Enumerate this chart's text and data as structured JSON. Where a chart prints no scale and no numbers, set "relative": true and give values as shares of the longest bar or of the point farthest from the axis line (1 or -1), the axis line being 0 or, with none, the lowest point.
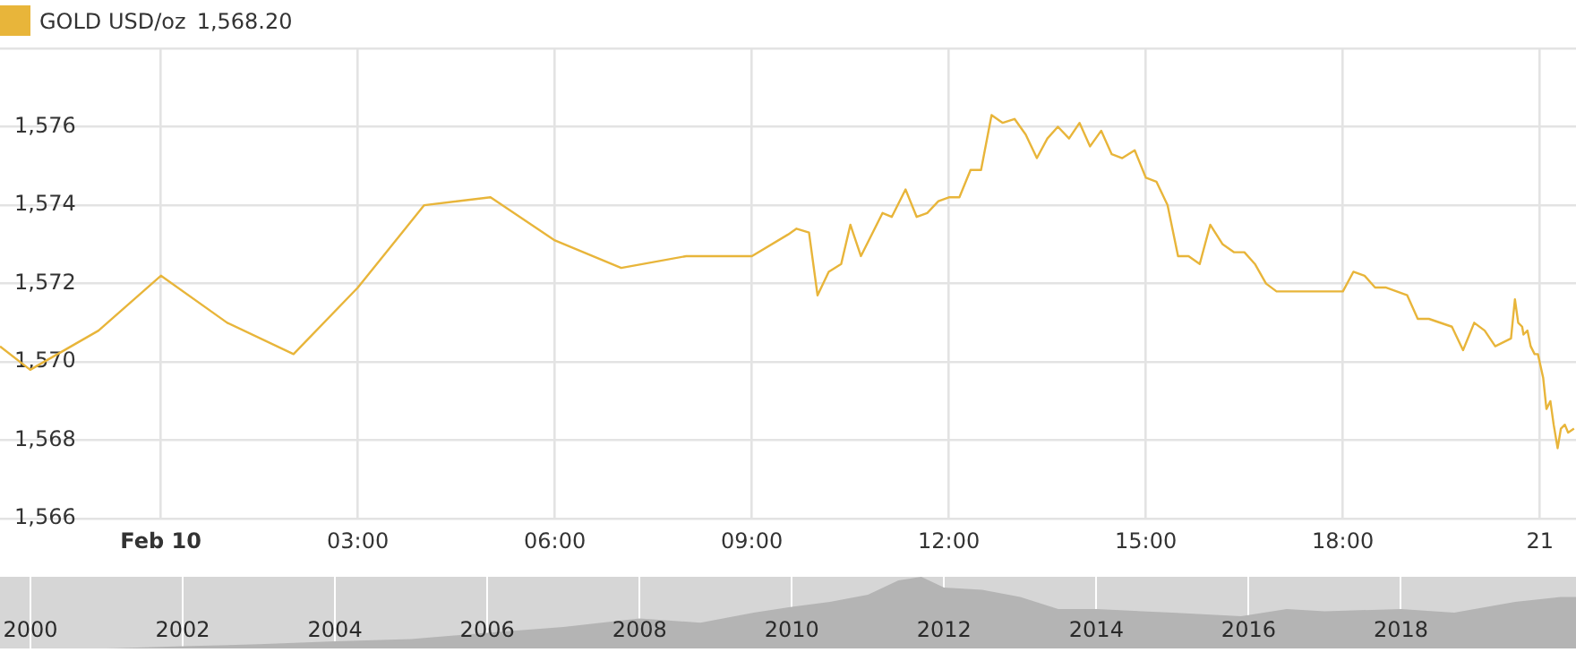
{
  "chart_data": [
    {
      "type": "line",
      "legend": "top left",
      "grid": true,
      "marker": "none",
      "annotations": [
        "1,568.20"
      ],
      "xlim": [
        -2.45,
        21.55
      ],
      "xticks": [
        {
          "value": 0,
          "label": "Feb 10"
        },
        {
          "value": 3,
          "label": "03:00"
        },
        {
          "value": 6,
          "label": "06:00"
        },
        {
          "value": 9,
          "label": "09:00"
        },
        {
          "value": 12,
          "label": "12:00"
        },
        {
          "value": 15,
          "label": "15:00"
        },
        {
          "value": 18,
          "label": "18:00"
        },
        {
          "value": 21,
          "label": "21"
        }
      ],
      "ylim": [
        1566,
        1578
      ],
      "yticks": [
        {
          "value": 1566,
          "label": "1,566"
        },
        {
          "value": 1568,
          "label": "1,568"
        },
        {
          "value": 1570,
          "label": "1,570"
        },
        {
          "value": 1572,
          "label": "1,572"
        },
        {
          "value": 1574,
          "label": "1,574"
        },
        {
          "value": 1576,
          "label": "1,576"
        },
        {
          "value": 1578,
          "label": null
        }
      ],
      "series": [
        {
          "name": "GOLD USD/oz",
          "color": "#e8b53a",
          "x": [
            -2.45,
            -1.99,
            -0.95,
            0,
            1.01,
            2.02,
            3.0,
            4.01,
            5.02,
            6.0,
            7.01,
            8.0,
            9.0,
            9.55,
            9.68,
            9.87,
            10.0,
            10.17,
            10.36,
            10.5,
            10.66,
            10.99,
            11.13,
            11.34,
            11.51,
            11.67,
            11.84,
            12.0,
            12.16,
            12.33,
            12.49,
            12.65,
            12.82,
            13.0,
            13.17,
            13.34,
            13.5,
            13.66,
            13.83,
            13.99,
            14.15,
            14.32,
            14.48,
            14.64,
            14.83,
            15.0,
            15.16,
            15.33,
            15.49,
            15.65,
            15.82,
            15.98,
            16.17,
            16.34,
            16.5,
            16.66,
            16.83,
            16.99,
            18.0,
            18.16,
            18.33,
            18.49,
            18.65,
            18.98,
            19.14,
            19.31,
            19.66,
            19.83,
            20.0,
            20.16,
            20.32,
            20.56,
            20.62,
            20.67,
            20.73,
            20.75,
            20.81,
            20.86,
            20.92,
            20.97,
            21.05,
            21.1,
            21.16,
            21.21,
            21.27,
            21.32,
            21.38,
            21.43,
            21.52
          ],
          "values": [
            1570.4,
            1569.8,
            1570.8,
            1572.2,
            1571.0,
            1570.2,
            1571.9,
            1574.0,
            1574.2,
            1573.1,
            1572.4,
            1572.7,
            1572.7,
            1573.25,
            1573.4,
            1573.3,
            1571.7,
            1572.3,
            1572.5,
            1573.5,
            1572.7,
            1573.8,
            1573.7,
            1574.4,
            1573.7,
            1573.8,
            1574.1,
            1574.2,
            1574.2,
            1574.9,
            1574.9,
            1576.3,
            1576.1,
            1576.2,
            1575.8,
            1575.2,
            1575.7,
            1576.0,
            1575.7,
            1576.1,
            1575.5,
            1575.9,
            1575.3,
            1575.2,
            1575.4,
            1574.7,
            1574.6,
            1574.0,
            1572.7,
            1572.7,
            1572.5,
            1573.5,
            1573.0,
            1572.8,
            1572.8,
            1572.5,
            1572.0,
            1571.8,
            1571.8,
            1572.3,
            1572.2,
            1571.9,
            1571.9,
            1571.7,
            1571.1,
            1571.1,
            1570.9,
            1570.3,
            1571.0,
            1570.8,
            1570.4,
            1570.6,
            1571.6,
            1571.0,
            1570.9,
            1570.7,
            1570.8,
            1570.4,
            1570.2,
            1570.2,
            1569.6,
            1568.8,
            1569.0,
            1568.4,
            1567.8,
            1568.3,
            1568.4,
            1568.2,
            1568.3
          ]
        }
      ]
    },
    {
      "type": "area",
      "relative": true,
      "grid": "x",
      "tick_labels": "x",
      "xlim": [
        1999.6,
        2020.3
      ],
      "xticks": [
        2000,
        2002,
        2004,
        2006,
        2008,
        2010,
        2012,
        2014,
        2016,
        2018
      ],
      "series": [
        {
          "color": "#b4b4b4",
          "x": [
            2000,
            2001,
            2002,
            2003,
            2004,
            2005,
            2006,
            2007,
            2008,
            2008.8,
            2009.5,
            2010,
            2010.5,
            2011,
            2011.4,
            2011.7,
            2012,
            2012.5,
            2013,
            2013.5,
            2014,
            2015,
            2015.9,
            2016.5,
            2017,
            2018,
            2018.7,
            2019.5,
            2020.1,
            2020.3
          ],
          "values": [
            0,
            0,
            0.03,
            0.06,
            0.1,
            0.13,
            0.22,
            0.3,
            0.42,
            0.36,
            0.5,
            0.58,
            0.65,
            0.75,
            0.95,
            1.0,
            0.85,
            0.82,
            0.72,
            0.55,
            0.55,
            0.5,
            0.45,
            0.55,
            0.52,
            0.55,
            0.5,
            0.65,
            0.72,
            0.72
          ]
        }
      ]
    }
  ]
}
